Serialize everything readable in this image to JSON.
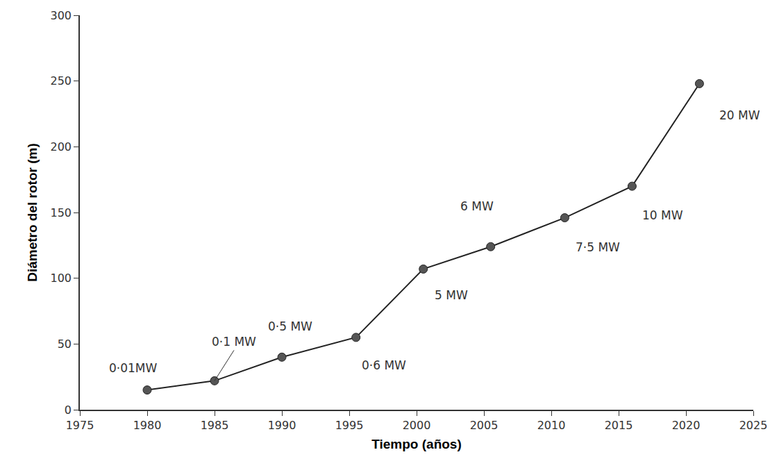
{
  "chart_data": {
    "type": "line",
    "x_label": "Tiempo (años)",
    "y_label": "Diámetro del rotor (m)",
    "x": [
      1980,
      1985,
      1990,
      1995.5,
      2000.5,
      2005.5,
      2011,
      2016,
      2021
    ],
    "values": [
      15,
      22,
      40,
      55,
      107,
      124,
      146,
      170,
      248
    ],
    "point_labels": [
      "0·01MW",
      "0·1 MW",
      "0·5 MW",
      "0·6 MW",
      "5 MW",
      "6 MW",
      "7·5 MW",
      "10 MW",
      "20 MW"
    ],
    "color": "#222222",
    "marker": "circle",
    "line_style": "solid",
    "xlim": [
      1975,
      2025
    ],
    "xticks": [
      1975,
      1980,
      1985,
      1990,
      1995,
      2000,
      2005,
      2010,
      2015,
      2020,
      2025
    ],
    "ylim": [
      0,
      300
    ],
    "yticks": [
      0,
      50,
      100,
      150,
      200,
      250,
      300
    ],
    "grid": false
  }
}
